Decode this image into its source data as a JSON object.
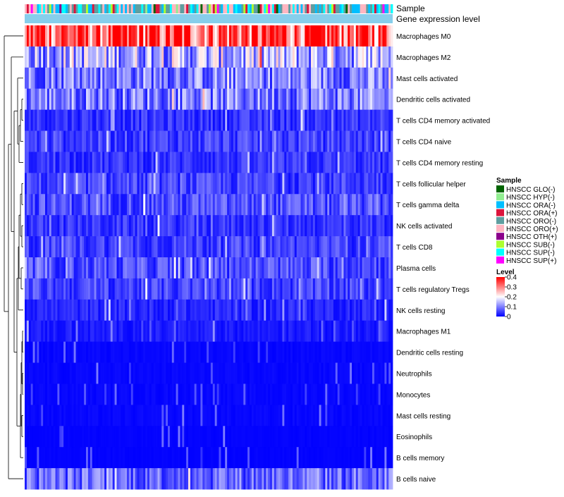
{
  "chart_data": {
    "type": "heatmap",
    "title": "",
    "annotation_tracks": [
      "Sample",
      "Gene expression level"
    ],
    "rows": [
      "Macrophages M0",
      "Macrophages M2",
      "Mast cells activated",
      "Dendritic cells activated",
      "T cells CD4 memory activated",
      "T cells CD4 naive",
      "T cells CD4 memory resting",
      "T cells follicular helper",
      "T cells gamma delta",
      "NK cells activated",
      "T cells CD8",
      "Plasma cells",
      "T cells regulatory  Tregs",
      "NK cells resting",
      "Macrophages M1",
      "Dendritic cells resting",
      "Neutrophils",
      "Monocytes",
      "Mast cells resting",
      "Eosinophils",
      "B cells memory",
      "B cells naive"
    ],
    "row_mean_level": [
      0.34,
      0.14,
      0.1,
      0.1,
      0.04,
      0.05,
      0.04,
      0.05,
      0.06,
      0.04,
      0.05,
      0.06,
      0.05,
      0.03,
      0.02,
      0.01,
      0.01,
      0.01,
      0.01,
      0.005,
      0.005,
      0.08
    ],
    "n_samples": 180,
    "sample_legend": {
      "title": "Sample",
      "entries": [
        {
          "label": "HNSCC GLO(-)",
          "color": "#006400"
        },
        {
          "label": "HNSCC HYP(-)",
          "color": "#90ee90"
        },
        {
          "label": "HNSCC ORA(-)",
          "color": "#00bfff"
        },
        {
          "label": "HNSCC ORA(+)",
          "color": "#dc143c"
        },
        {
          "label": "HNSCC ORO(-)",
          "color": "#5f9ea0"
        },
        {
          "label": "HNSCC ORO(+)",
          "color": "#ffb6c1"
        },
        {
          "label": "HNSCC OTH(+)",
          "color": "#8b008b"
        },
        {
          "label": "HNSCC SUB(-)",
          "color": "#adff2f"
        },
        {
          "label": "HNSCC SUP(-)",
          "color": "#00ffff"
        },
        {
          "label": "HNSCC SUP(+)",
          "color": "#ff00ff"
        }
      ]
    },
    "level_legend": {
      "title": "Level",
      "ticks": [
        "0.4",
        "0.3",
        "0.2",
        "0.1",
        "0"
      ],
      "range": [
        0,
        0.4
      ],
      "colors": [
        "#0000ff",
        "#ffffff",
        "#ff0000"
      ]
    },
    "gene_expression_color": "#87ceeb"
  }
}
